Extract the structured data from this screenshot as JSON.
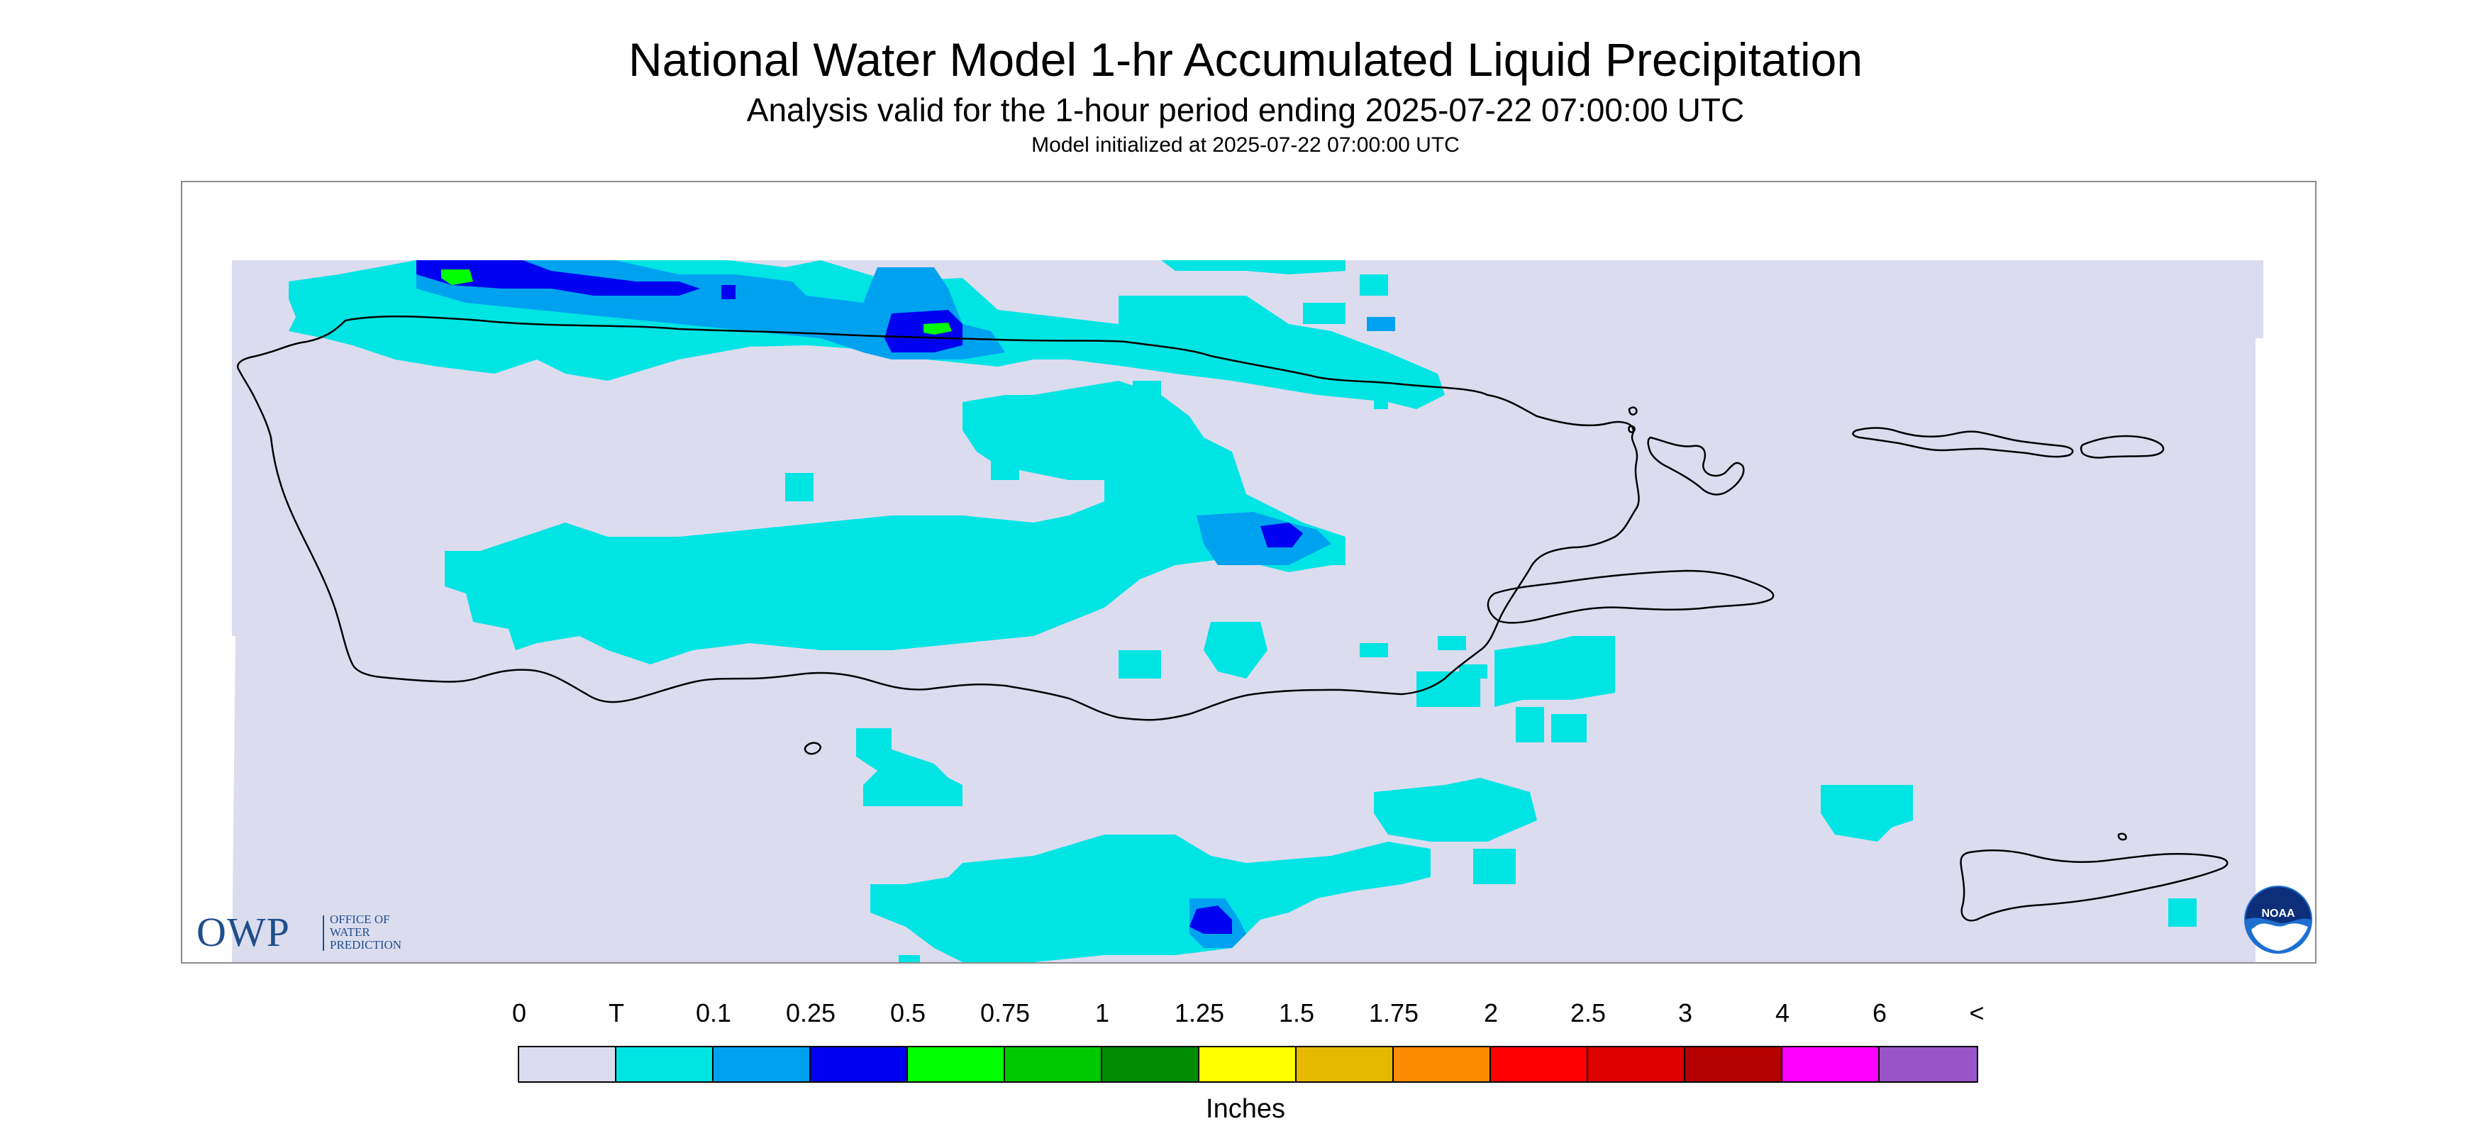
{
  "title": "National Water Model 1-hr Accumulated Liquid Precipitation",
  "subtitle": "Analysis valid for the 1-hour period ending 2025-07-22 07:00:00 UTC",
  "model_init": "Model initialized at 2025-07-22 07:00:00 UTC",
  "logos": {
    "owp_letters": "OWP",
    "owp_text": [
      "OFFICE OF",
      "WATER",
      "PREDICTION"
    ],
    "noaa_text": "NOAA"
  },
  "colors": {
    "background_field": "#dcdcef",
    "coastline": "#000000",
    "frame": "#8c8c8c"
  },
  "legend": {
    "units": "Inches",
    "tick_labels": [
      "0",
      "T",
      "0.1",
      "0.25",
      "0.5",
      "0.75",
      "1",
      "1.25",
      "1.5",
      "1.75",
      "2",
      "2.5",
      "3",
      "4",
      "6",
      "<"
    ],
    "bin_colors": [
      "#dcdcef",
      "#00e4e4",
      "#00a2f0",
      "#0000f0",
      "#00ff00",
      "#00c800",
      "#008c00",
      "#ffff00",
      "#e6b800",
      "#ff8c00",
      "#ff0000",
      "#dc0000",
      "#b40000",
      "#ff00ff",
      "#9a55c8"
    ]
  },
  "precip_areas": [
    {
      "level": "T",
      "color": "#00e4e4",
      "location": "north coast offshore band"
    },
    {
      "level": "T",
      "color": "#00e4e4",
      "location": "north-central interior"
    },
    {
      "level": "T",
      "color": "#00e4e4",
      "location": "central interior band"
    },
    {
      "level": "T",
      "color": "#00e4e4",
      "location": "eastern interior"
    },
    {
      "level": "T",
      "color": "#00e4e4",
      "location": "south coast offshore"
    },
    {
      "level": "T",
      "color": "#00e4e4",
      "location": "Caribbean south of island"
    },
    {
      "level": "0.1",
      "color": "#00a2f0",
      "location": "northwest offshore"
    },
    {
      "level": "0.1",
      "color": "#00a2f0",
      "location": "central interior core"
    },
    {
      "level": "0.25",
      "color": "#0000f0",
      "location": "northwest offshore cores"
    },
    {
      "level": "0.25",
      "color": "#0000f0",
      "location": "south offshore core"
    },
    {
      "level": "0.5",
      "color": "#00ff00",
      "location": "northwest offshore peaks"
    }
  ]
}
